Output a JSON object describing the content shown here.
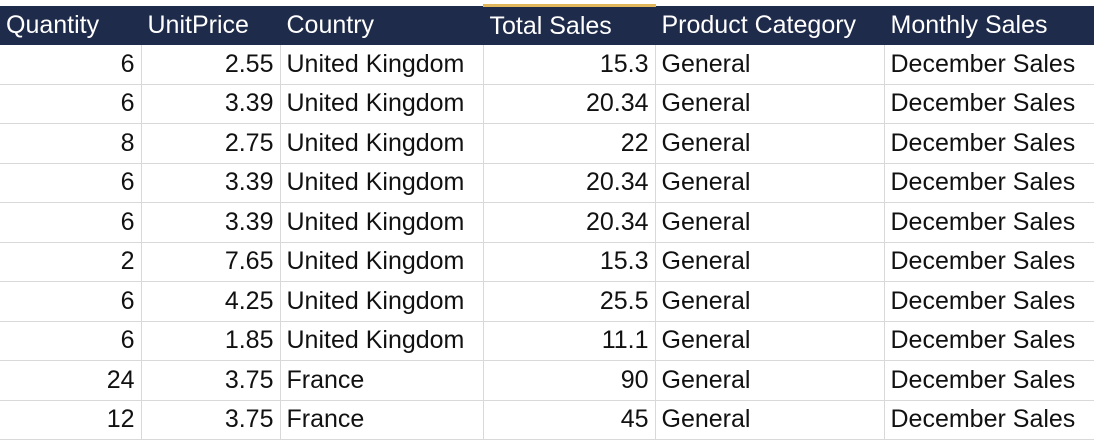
{
  "table": {
    "headers": [
      "Quantity",
      "UnitPrice",
      "Country",
      "Total Sales",
      "Product Category",
      "Monthly Sales"
    ],
    "rows": [
      [
        "6",
        "2.55",
        "United Kingdom",
        "15.3",
        "General",
        "December Sales"
      ],
      [
        "6",
        "3.39",
        "United Kingdom",
        "20.34",
        "General",
        "December Sales"
      ],
      [
        "8",
        "2.75",
        "United Kingdom",
        "22",
        "General",
        "December Sales"
      ],
      [
        "6",
        "3.39",
        "United Kingdom",
        "20.34",
        "General",
        "December Sales"
      ],
      [
        "6",
        "3.39",
        "United Kingdom",
        "20.34",
        "General",
        "December Sales"
      ],
      [
        "2",
        "7.65",
        "United Kingdom",
        "15.3",
        "General",
        "December Sales"
      ],
      [
        "6",
        "4.25",
        "United Kingdom",
        "25.5",
        "General",
        "December Sales"
      ],
      [
        "6",
        "1.85",
        "United Kingdom",
        "11.1",
        "General",
        "December Sales"
      ],
      [
        "24",
        "3.75",
        "France",
        "90",
        "General",
        "December Sales"
      ],
      [
        "12",
        "3.75",
        "France",
        "45",
        "General",
        "December Sales"
      ]
    ]
  },
  "colors": {
    "header_background": "#1f2b4a",
    "header_text": "#ffffff",
    "selected_column_accent": "#e0b75a",
    "gridline": "#d9d9d9"
  }
}
